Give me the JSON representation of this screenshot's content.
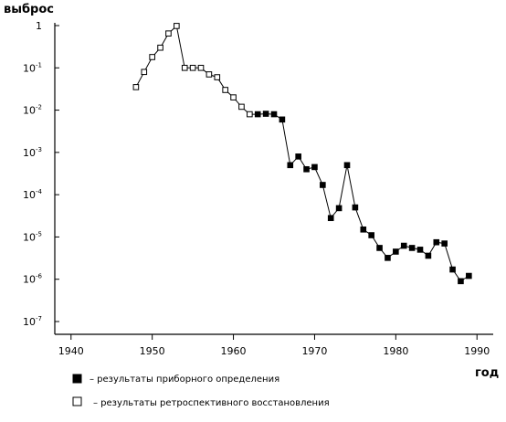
{
  "chart_data": {
    "type": "line",
    "ylabel": "выброс",
    "xlabel": "год",
    "y_scale": "log",
    "ylim": [
      1e-07,
      1
    ],
    "xlim": [
      1938,
      1992
    ],
    "y_ticks": [
      {
        "value": 1,
        "mantissa": "1",
        "exponent": ""
      },
      {
        "value": 0.1,
        "mantissa": "10",
        "exponent": "-1"
      },
      {
        "value": 0.01,
        "mantissa": "10",
        "exponent": "-2"
      },
      {
        "value": 0.001,
        "mantissa": "10",
        "exponent": "-3"
      },
      {
        "value": 0.0001,
        "mantissa": "10",
        "exponent": "-4"
      },
      {
        "value": 1e-05,
        "mantissa": "10",
        "exponent": "-5"
      },
      {
        "value": 1e-06,
        "mantissa": "10",
        "exponent": "-6"
      },
      {
        "value": 1e-07,
        "mantissa": "10",
        "exponent": "-7"
      }
    ],
    "x_ticks": [
      1940,
      1950,
      1960,
      1970,
      1980,
      1990
    ],
    "grid": false,
    "legend_position": "bottom-left",
    "series": [
      {
        "name": "результаты ретроспективного восстановления",
        "marker": "open-square",
        "points": [
          [
            1948,
            0.035
          ],
          [
            1949,
            0.08
          ],
          [
            1950,
            0.18
          ],
          [
            1951,
            0.3
          ],
          [
            1952,
            0.65
          ],
          [
            1953,
            0.98
          ],
          [
            1954,
            0.1
          ],
          [
            1955,
            0.1
          ],
          [
            1956,
            0.1
          ],
          [
            1957,
            0.07
          ],
          [
            1958,
            0.06
          ],
          [
            1959,
            0.03
          ],
          [
            1960,
            0.02
          ],
          [
            1961,
            0.012
          ],
          [
            1962,
            0.008
          ]
        ]
      },
      {
        "name": "результаты приборного определения",
        "marker": "filled-square",
        "points": [
          [
            1963,
            0.008
          ],
          [
            1964,
            0.0082
          ],
          [
            1965,
            0.008
          ],
          [
            1966,
            0.006
          ],
          [
            1967,
            0.0005
          ],
          [
            1968,
            0.0008
          ],
          [
            1969,
            0.0004
          ],
          [
            1970,
            0.00045
          ],
          [
            1971,
            0.00017
          ],
          [
            1972,
            2.8e-05
          ],
          [
            1973,
            4.8e-05
          ],
          [
            1974,
            0.0005
          ],
          [
            1975,
            5e-05
          ],
          [
            1976,
            1.5e-05
          ],
          [
            1977,
            1.1e-05
          ],
          [
            1978,
            5.5e-06
          ],
          [
            1979,
            3.2e-06
          ],
          [
            1980,
            4.5e-06
          ],
          [
            1981,
            6.2e-06
          ],
          [
            1982,
            5.5e-06
          ],
          [
            1983,
            5e-06
          ],
          [
            1984,
            3.6e-06
          ],
          [
            1985,
            7.5e-06
          ],
          [
            1986,
            7e-06
          ],
          [
            1987,
            1.7e-06
          ],
          [
            1988,
            9e-07
          ],
          [
            1989,
            1.2e-06
          ]
        ]
      }
    ],
    "legend": [
      {
        "marker": "filled-square",
        "label": "– результаты приборного определения"
      },
      {
        "marker": "open-square",
        "label": "– результаты ретроспективного восстановления"
      }
    ]
  }
}
